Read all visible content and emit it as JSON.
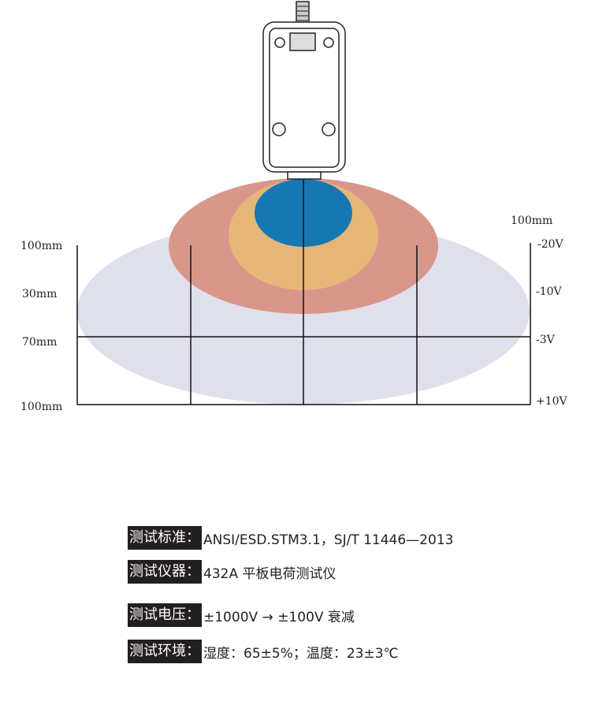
{
  "diagram": {
    "top_label": "100mm",
    "left_labels": [
      "100mm",
      "30mm",
      "70mm",
      "100mm"
    ],
    "right_labels": [
      "-20V",
      "-10V",
      "-3V",
      "+10V"
    ]
  },
  "specs": [
    {
      "label": "测试标准：",
      "value": "ANSI/ESD.STM3.1，SJ/T   11446—2013"
    },
    {
      "label": "测试仪器：",
      "value": "432A 平板电荷测试仪"
    },
    {
      "label": "测试电压：",
      "value": "±1000V → ±100V 衰减"
    },
    {
      "label": "测试环境：",
      "value": "湿度：65±5%；温度：23±3℃"
    }
  ]
}
